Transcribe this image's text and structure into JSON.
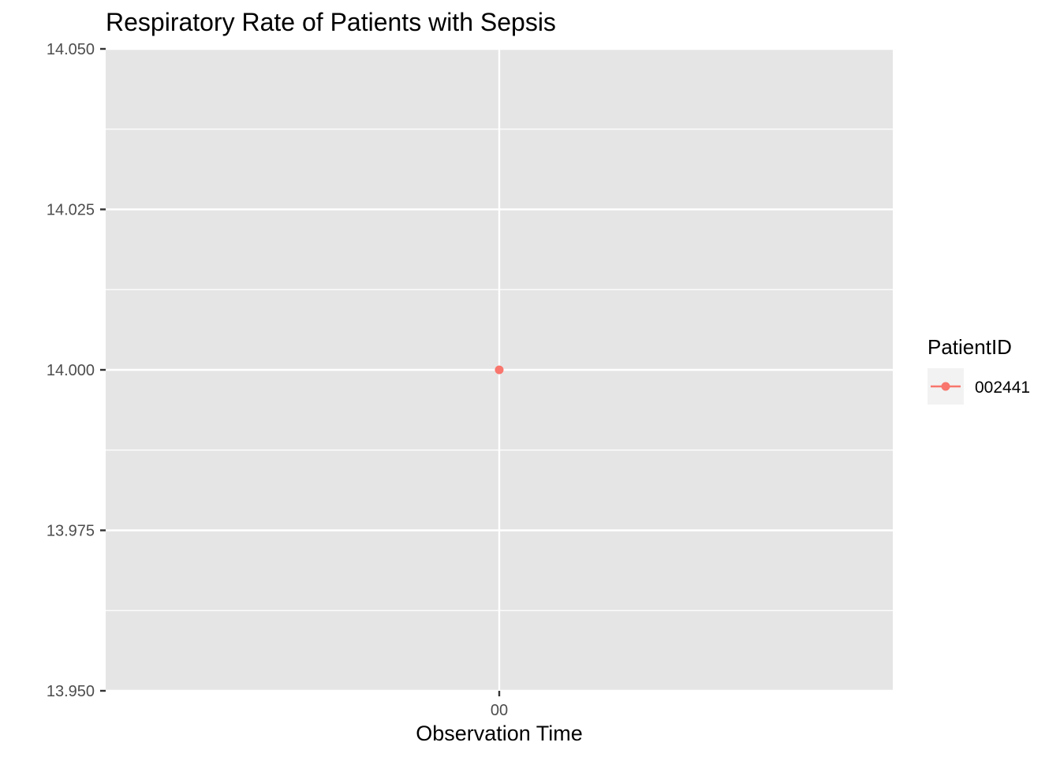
{
  "chart_data": {
    "type": "line",
    "title": "Respiratory Rate of Patients with Sepsis",
    "xlabel": "Observation Time",
    "ylabel": "",
    "x_categories": [
      "00"
    ],
    "ylim": [
      13.95,
      14.05
    ],
    "y_ticks": [
      "13.950",
      "13.975",
      "14.000",
      "14.025",
      "14.050"
    ],
    "grid": true,
    "legend": {
      "title": "PatientID",
      "position": "right"
    },
    "series": [
      {
        "name": "002441",
        "color": "#F8766D",
        "points": [
          {
            "x": "00",
            "y": 14.0
          }
        ]
      }
    ]
  }
}
